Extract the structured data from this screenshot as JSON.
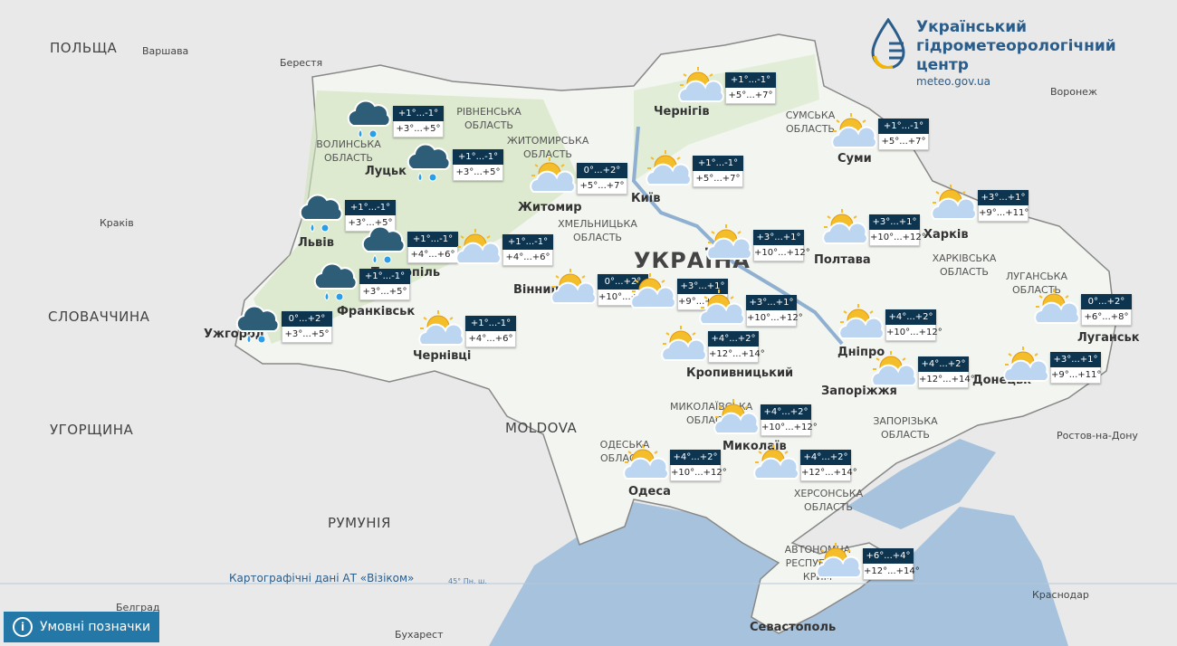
{
  "logo": {
    "line1": "Український",
    "line2": "гідрометеорологічний",
    "line3": "центр",
    "url": "meteo.gov.ua"
  },
  "legend_button": {
    "label": "Умовні позначки",
    "icon": "info-icon"
  },
  "attribution": "Картографічні дані АТ «Візіком»",
  "latitude_label": "45° Пн. ш.",
  "colors": {
    "night_bg": "#0d3550",
    "sea": "#a6c2dc",
    "ukraine_land": "#f3f5f0",
    "foreign_land": "#e9e9e9",
    "accent": "#2478a8"
  },
  "labels": {
    "countries": [
      "ПОЛЬЩА",
      "СЛОВАЧЧИНА",
      "УГОРЩИНА",
      "РУМУНІЯ",
      "MOLDOVA",
      "УКРАЇНА"
    ],
    "foreign_cities": [
      "Варшава",
      "Берестя",
      "Краків",
      "Белград",
      "Бухарест",
      "Воронеж",
      "Ростов-на-Дону",
      "Краснодар"
    ],
    "cities": [
      "Луцьк",
      "Житомир",
      "Київ",
      "Чернігів",
      "Суми",
      "Львів",
      "Тернопіль",
      "Франківськ",
      "Ужгород",
      "Чернівці",
      "Вінниця",
      "Полтава",
      "Харків",
      "Дніпро",
      "Луганськ",
      "Запоріжжя",
      "Донецьк",
      "Одеса",
      "Миколаїв",
      "Севастополь",
      "Кропивницький"
    ],
    "oblasts": [
      "СУМСЬКА ОБЛАСТЬ",
      "ХАРКІВСЬКА ОБЛАСТЬ",
      "ЛУГАНСЬКА ОБЛАСТЬ",
      "ЗАПОРІЗЬКА ОБЛАСТЬ",
      "МИКОЛАЇВСЬКА ОБЛАСТЬ",
      "ОДЕСЬКА ОБЛАСТЬ",
      "ЖИТОМИРСЬКА ОБЛАСТЬ",
      "ВОЛИНСЬКА ОБЛАСТЬ",
      "РІВНЕНСЬКА ОБЛАСТЬ",
      "ХМЕЛЬНИЦЬКА ОБЛАСТЬ",
      "ХЕРСОНСЬКА ОБЛАСТЬ",
      "АВТОНОМНА РЕСПУБЛІКА КРИМ"
    ]
  },
  "forecasts": [
    {
      "region": "Волинь",
      "icon": "rain-snow",
      "night": "+1°...-1°",
      "day": "+3°...+5°"
    },
    {
      "region": "Рівне",
      "icon": "rain-snow",
      "night": "+1°...-1°",
      "day": "+3°...+5°"
    },
    {
      "region": "Львів",
      "icon": "rain-snow",
      "night": "+1°...-1°",
      "day": "+3°...+5°"
    },
    {
      "region": "Тернопіль",
      "icon": "rain-snow",
      "night": "+1°...-1°",
      "day": "+4°...+6°"
    },
    {
      "region": "Хмельницький",
      "icon": "partly-cloudy",
      "night": "+1°...-1°",
      "day": "+4°...+6°"
    },
    {
      "region": "Івано-Франківськ",
      "icon": "rain-snow",
      "night": "+1°...-1°",
      "day": "+3°...+5°"
    },
    {
      "region": "Ужгород",
      "icon": "rain-snow",
      "night": "0°...+2°",
      "day": "+3°...+5°"
    },
    {
      "region": "Чернівці",
      "icon": "partly-cloudy",
      "night": "+1°...-1°",
      "day": "+4°...+6°"
    },
    {
      "region": "Житомир",
      "icon": "partly-cloudy",
      "night": "0°...+2°",
      "day": "+5°...+7°"
    },
    {
      "region": "Київ",
      "icon": "partly-cloudy",
      "night": "+1°...-1°",
      "day": "+5°...+7°"
    },
    {
      "region": "Чернігів",
      "icon": "partly-cloudy",
      "night": "+1°...-1°",
      "day": "+5°...+7°"
    },
    {
      "region": "Суми",
      "icon": "partly-cloudy",
      "night": "+1°...-1°",
      "day": "+5°...+7°"
    },
    {
      "region": "Вінниця",
      "icon": "partly-cloudy",
      "night": "0°...+2°",
      "day": "+10°...+12°"
    },
    {
      "region": "Черкаси",
      "icon": "partly-cloudy",
      "night": "+3°...+1°",
      "day": "+10°...+12°"
    },
    {
      "region": "Полтава",
      "icon": "partly-cloudy",
      "night": "+3°...+1°",
      "day": "+10°...+12°"
    },
    {
      "region": "Харків",
      "icon": "partly-cloudy",
      "night": "+3°...+1°",
      "day": "+9°...+11°"
    },
    {
      "region": "Умань",
      "icon": "partly-cloudy",
      "night": "+3°...+1°",
      "day": "+9°...+11°"
    },
    {
      "region": "Кропивницький",
      "icon": "partly-cloudy",
      "night": "+3°...+1°",
      "day": "+10°...+12°"
    },
    {
      "region": "Кропивницький-пд",
      "icon": "partly-cloudy",
      "night": "+4°...+2°",
      "day": "+12°...+14°"
    },
    {
      "region": "Дніпро",
      "icon": "partly-cloudy",
      "night": "+4°...+2°",
      "day": "+10°...+12°"
    },
    {
      "region": "Луганськ",
      "icon": "partly-cloudy",
      "night": "0°...+2°",
      "day": "+6°...+8°"
    },
    {
      "region": "Запоріжжя",
      "icon": "partly-cloudy",
      "night": "+4°...+2°",
      "day": "+12°...+14°"
    },
    {
      "region": "Донецьк",
      "icon": "partly-cloudy",
      "night": "+3°...+1°",
      "day": "+9°...+11°"
    },
    {
      "region": "Миколаїв",
      "icon": "partly-cloudy",
      "night": "+4°...+2°",
      "day": "+10°...+12°"
    },
    {
      "region": "Одеса",
      "icon": "partly-cloudy",
      "night": "+4°...+2°",
      "day": "+10°...+12°"
    },
    {
      "region": "Херсон",
      "icon": "partly-cloudy",
      "night": "+4°...+2°",
      "day": "+12°...+14°"
    },
    {
      "region": "Крим",
      "icon": "partly-cloudy",
      "night": "+6°...+4°",
      "day": "+12°...+14°"
    }
  ]
}
